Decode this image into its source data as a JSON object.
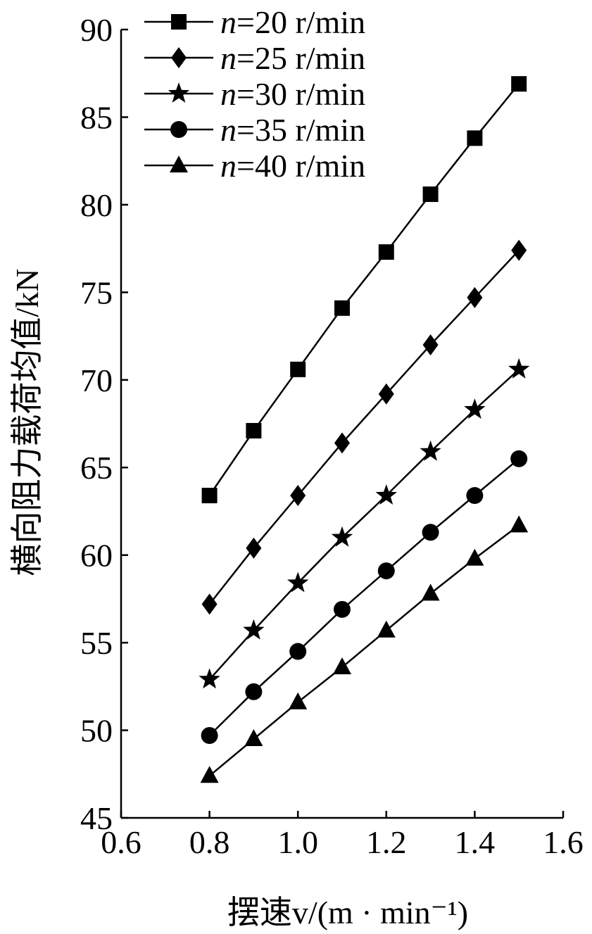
{
  "chart_data": {
    "type": "line",
    "xlabel": "摆速v/(m · min⁻¹)",
    "ylabel": "横向阻力载荷均值/kN",
    "xlim": [
      0.6,
      1.6
    ],
    "ylim": [
      45,
      90
    ],
    "x_ticks": [
      "0.6",
      "0.8",
      "1.0",
      "1.2",
      "1.4",
      "1.6"
    ],
    "y_ticks": [
      "45",
      "50",
      "55",
      "60",
      "65",
      "70",
      "75",
      "80",
      "85",
      "90"
    ],
    "grid": false,
    "legend_position": "top-left",
    "x": [
      0.8,
      0.9,
      1.0,
      1.1,
      1.2,
      1.3,
      1.4,
      1.5
    ],
    "series": [
      {
        "name": "n=20 r/min",
        "name_var": "n",
        "name_rest": "=20 r/min",
        "marker": "square",
        "values": [
          63.4,
          67.1,
          70.6,
          74.1,
          77.3,
          80.6,
          83.8,
          86.9
        ]
      },
      {
        "name": "n=25 r/min",
        "name_var": "n",
        "name_rest": "=25 r/min",
        "marker": "diamond",
        "values": [
          57.2,
          60.4,
          63.4,
          66.4,
          69.2,
          72.0,
          74.7,
          77.4
        ]
      },
      {
        "name": "n=30 r/min",
        "name_var": "n",
        "name_rest": "=30 r/min",
        "marker": "star",
        "values": [
          52.9,
          55.7,
          58.4,
          61.0,
          63.4,
          65.9,
          68.3,
          70.6
        ]
      },
      {
        "name": "n=35 r/min",
        "name_var": "n",
        "name_rest": "=35 r/min",
        "marker": "circle",
        "values": [
          49.7,
          52.2,
          54.5,
          56.9,
          59.1,
          61.3,
          63.4,
          65.5
        ]
      },
      {
        "name": "n=40 r/min",
        "name_var": "n",
        "name_rest": "=40 r/min",
        "marker": "triangle",
        "values": [
          47.4,
          49.5,
          51.6,
          53.6,
          55.7,
          57.8,
          59.8,
          61.7
        ]
      }
    ]
  }
}
